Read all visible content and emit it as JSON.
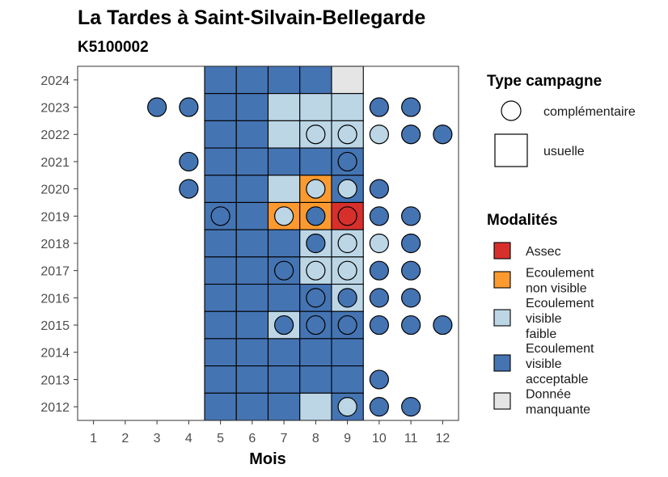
{
  "chart_data": {
    "type": "heatmap",
    "title": "La Tardes à Saint-Silvain-Bellegarde",
    "subtitle": "K5100002",
    "xlabel": "Mois",
    "ylabel": "",
    "x_ticks": [
      "1",
      "2",
      "3",
      "4",
      "5",
      "6",
      "7",
      "8",
      "9",
      "10",
      "11",
      "12"
    ],
    "y_ticks": [
      "2012",
      "2013",
      "2014",
      "2015",
      "2016",
      "2017",
      "2018",
      "2019",
      "2020",
      "2021",
      "2022",
      "2023",
      "2024"
    ],
    "grid": false,
    "legend_position": "right",
    "colors": {
      "Assec": "#d7302c",
      "Ecoulement non visible": "#fd9a2f",
      "Ecoulement visible faible": "#bcd6e6",
      "Ecoulement visible acceptable": "#4574b3",
      "Donnée manquante": "#e5e5e5"
    },
    "legend_shape": {
      "title": "Type campagne",
      "items": [
        {
          "label": "complémentaire",
          "shape": "circle"
        },
        {
          "label": "usuelle",
          "shape": "square"
        }
      ]
    },
    "legend_modalites": {
      "title": "Modalités",
      "items": [
        {
          "key": "Assec",
          "lines": [
            "Assec"
          ]
        },
        {
          "key": "Ecoulement non visible",
          "lines": [
            "Ecoulement",
            "non visible"
          ]
        },
        {
          "key": "Ecoulement visible faible",
          "lines": [
            "Ecoulement",
            "visible",
            "faible"
          ]
        },
        {
          "key": "Ecoulement visible acceptable",
          "lines": [
            "Ecoulement",
            "visible",
            "acceptable"
          ]
        },
        {
          "key": "Donnée manquante",
          "lines": [
            "Donnée",
            "manquante"
          ]
        }
      ]
    },
    "usuelle": [
      {
        "year": 2024,
        "cells": [
          "A",
          "A",
          "A",
          "A",
          "M"
        ]
      },
      {
        "year": 2023,
        "cells": [
          "A",
          "A",
          "F",
          "F",
          "F"
        ]
      },
      {
        "year": 2022,
        "cells": [
          "A",
          "A",
          "F",
          "F",
          "F"
        ]
      },
      {
        "year": 2021,
        "cells": [
          "A",
          "A",
          "A",
          "A",
          "A"
        ]
      },
      {
        "year": 2020,
        "cells": [
          "A",
          "A",
          "F",
          "N",
          "A"
        ]
      },
      {
        "year": 2019,
        "cells": [
          "A",
          "A",
          "N",
          "N",
          "S"
        ]
      },
      {
        "year": 2018,
        "cells": [
          "A",
          "A",
          "A",
          "F",
          "F"
        ]
      },
      {
        "year": 2017,
        "cells": [
          "A",
          "A",
          "A",
          "F",
          "F"
        ]
      },
      {
        "year": 2016,
        "cells": [
          "A",
          "A",
          "A",
          "A",
          "F"
        ]
      },
      {
        "year": 2015,
        "cells": [
          "A",
          "A",
          "F",
          "A",
          "A"
        ]
      },
      {
        "year": 2014,
        "cells": [
          "A",
          "A",
          "A",
          "A",
          "A"
        ]
      },
      {
        "year": 2013,
        "cells": [
          "A",
          "A",
          "A",
          "A",
          "A"
        ]
      },
      {
        "year": 2012,
        "cells": [
          "A",
          "A",
          "A",
          "F",
          "A"
        ]
      }
    ],
    "usuelle_months": [
      5,
      6,
      7,
      8,
      9
    ],
    "codes": {
      "A": "Ecoulement visible acceptable",
      "F": "Ecoulement visible faible",
      "N": "Ecoulement non visible",
      "S": "Assec",
      "M": "Donnée manquante"
    },
    "complementaire": [
      {
        "year": 2023,
        "month": 3,
        "v": "A"
      },
      {
        "year": 2023,
        "month": 4,
        "v": "A"
      },
      {
        "year": 2023,
        "month": 10,
        "v": "A"
      },
      {
        "year": 2023,
        "month": 11,
        "v": "A"
      },
      {
        "year": 2022,
        "month": 8,
        "v": "F"
      },
      {
        "year": 2022,
        "month": 9,
        "v": "F"
      },
      {
        "year": 2022,
        "month": 10,
        "v": "F"
      },
      {
        "year": 2022,
        "month": 11,
        "v": "A"
      },
      {
        "year": 2022,
        "month": 12,
        "v": "A"
      },
      {
        "year": 2021,
        "month": 4,
        "v": "A"
      },
      {
        "year": 2021,
        "month": 9,
        "v": "A"
      },
      {
        "year": 2020,
        "month": 4,
        "v": "A"
      },
      {
        "year": 2020,
        "month": 8,
        "v": "F"
      },
      {
        "year": 2020,
        "month": 9,
        "v": "F"
      },
      {
        "year": 2020,
        "month": 10,
        "v": "A"
      },
      {
        "year": 2019,
        "month": 5,
        "v": "A"
      },
      {
        "year": 2019,
        "month": 7,
        "v": "F"
      },
      {
        "year": 2019,
        "month": 8,
        "v": "A"
      },
      {
        "year": 2019,
        "month": 9,
        "v": "S"
      },
      {
        "year": 2019,
        "month": 10,
        "v": "A"
      },
      {
        "year": 2019,
        "month": 11,
        "v": "A"
      },
      {
        "year": 2018,
        "month": 8,
        "v": "A"
      },
      {
        "year": 2018,
        "month": 9,
        "v": "F"
      },
      {
        "year": 2018,
        "month": 10,
        "v": "F"
      },
      {
        "year": 2018,
        "month": 11,
        "v": "A"
      },
      {
        "year": 2017,
        "month": 7,
        "v": "A"
      },
      {
        "year": 2017,
        "month": 8,
        "v": "F"
      },
      {
        "year": 2017,
        "month": 9,
        "v": "F"
      },
      {
        "year": 2017,
        "month": 10,
        "v": "A"
      },
      {
        "year": 2017,
        "month": 11,
        "v": "A"
      },
      {
        "year": 2016,
        "month": 8,
        "v": "A"
      },
      {
        "year": 2016,
        "month": 9,
        "v": "A"
      },
      {
        "year": 2016,
        "month": 10,
        "v": "A"
      },
      {
        "year": 2016,
        "month": 11,
        "v": "A"
      },
      {
        "year": 2015,
        "month": 7,
        "v": "A"
      },
      {
        "year": 2015,
        "month": 8,
        "v": "A"
      },
      {
        "year": 2015,
        "month": 9,
        "v": "A"
      },
      {
        "year": 2015,
        "month": 10,
        "v": "A"
      },
      {
        "year": 2015,
        "month": 11,
        "v": "A"
      },
      {
        "year": 2015,
        "month": 12,
        "v": "A"
      },
      {
        "year": 2013,
        "month": 10,
        "v": "A"
      },
      {
        "year": 2012,
        "month": 9,
        "v": "F"
      },
      {
        "year": 2012,
        "month": 10,
        "v": "A"
      },
      {
        "year": 2012,
        "month": 11,
        "v": "A"
      }
    ]
  }
}
